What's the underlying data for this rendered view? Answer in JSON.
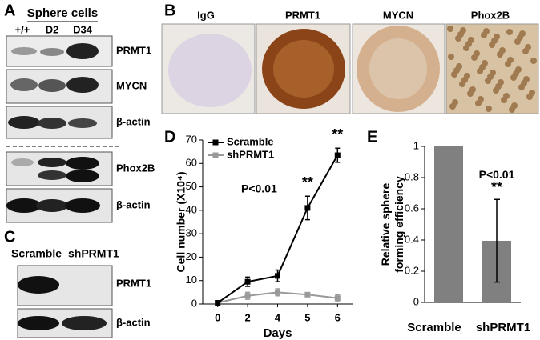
{
  "panel_letters": [
    "A",
    "B",
    "C",
    "D",
    "E"
  ],
  "blots_a": {
    "title": "Sphere cells",
    "lanes": [
      "+/+",
      "D2",
      "D34"
    ],
    "rows": [
      "PRMT1",
      "MYCN",
      "β-actin",
      "Phox2B",
      "β-actin"
    ]
  },
  "blots_c": {
    "lanes": [
      "Scramble",
      "shPRMT1"
    ],
    "rows": [
      "PRMT1",
      "β-actin"
    ]
  },
  "staining": {
    "labels": [
      "IgG",
      "PRMT1",
      "MYCN",
      "Phox2B"
    ]
  },
  "chart_data": [
    {
      "type": "line",
      "xlabel": "Days",
      "ylabel": "Cell number (X10⁴)",
      "categories": [
        "0",
        "2",
        "4",
        "5",
        "6"
      ],
      "series": [
        {
          "name": "Scramble",
          "color": "#000000",
          "values": [
            0.5,
            9.5,
            12,
            41,
            63.5
          ],
          "errors": [
            0.5,
            2,
            2.5,
            5,
            3
          ]
        },
        {
          "name": "shPRMT1",
          "color": "#999999",
          "values": [
            0.5,
            3.5,
            5,
            4,
            2.5
          ],
          "errors": [
            0.3,
            1.5,
            1.5,
            0.8,
            1.5
          ]
        }
      ],
      "ylim": [
        0,
        70
      ],
      "yticks": [
        0,
        10,
        20,
        30,
        40,
        50,
        60,
        70
      ],
      "legend": "upper left",
      "annotations": [
        {
          "text": "P<0.01"
        },
        {
          "text": "**",
          "category": "5"
        },
        {
          "text": "**",
          "category": "6"
        }
      ]
    },
    {
      "type": "bar",
      "ylabel": "Relative sphere forming efficiency",
      "categories": [
        "Scramble",
        "shPRMT1"
      ],
      "values": [
        1,
        0.395
      ],
      "errors": [
        0,
        0.265
      ],
      "color": "#808080",
      "ylim": [
        0,
        1
      ],
      "yticks": [
        0,
        0.2,
        0.4,
        0.6,
        0.8,
        1
      ],
      "annotations": [
        {
          "text": "P<0.01",
          "category": "shPRMT1"
        },
        {
          "text": "**",
          "category": "shPRMT1"
        }
      ]
    }
  ]
}
